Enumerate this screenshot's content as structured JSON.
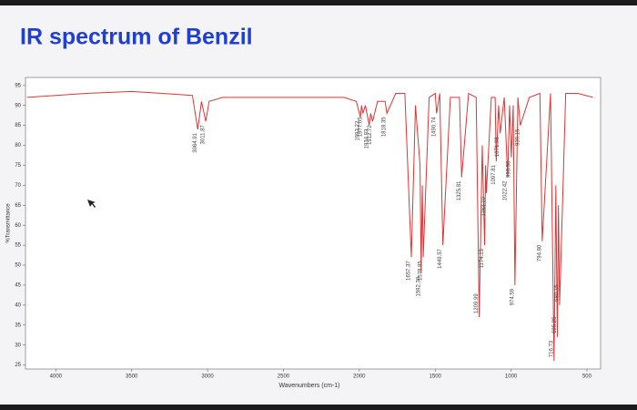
{
  "chart_data": {
    "type": "line",
    "title": "IR spectrum of Benzil",
    "xlabel": "Wavenumbers (cm-1)",
    "ylabel": "%Transmittance",
    "color": "#e03535",
    "x": [
      4190,
      3800,
      3500,
      3300,
      3100,
      3064.91,
      3040,
      3011.87,
      2990,
      2900,
      2500,
      2100,
      2020,
      1993.22,
      1985,
      1977.05,
      1960,
      1934.93,
      1925,
      1912.72,
      1880,
      1830,
      1818.35,
      1760,
      1700,
      1657.37,
      1630,
      1600,
      1592.38,
      1585,
      1578.85,
      1540,
      1500,
      1490.74,
      1470,
      1449.57,
      1400,
      1340,
      1325.81,
      1280,
      1230,
      1209.99,
      1190,
      1174.13,
      1168,
      1163.1,
      1130,
      1105,
      1097.81,
      1082,
      1071.98,
      1045,
      1022.42,
      1010,
      998.5,
      986,
      974.59,
      955,
      939.15,
      880,
      810,
      794.8,
      740,
      716.73,
      705,
      695.25,
      688,
      680.15,
      640,
      560,
      460
    ],
    "values": [
      92,
      93,
      93.5,
      93,
      92.5,
      84,
      91,
      86,
      91,
      92,
      92,
      92,
      91,
      87,
      90,
      88,
      90,
      85,
      88,
      86,
      91,
      91,
      88,
      93,
      93,
      52,
      90,
      75,
      48,
      70,
      52,
      92,
      93,
      88,
      93,
      55,
      92,
      92,
      72,
      93,
      92,
      37,
      80,
      55,
      75,
      68,
      92,
      92,
      76,
      90,
      83,
      92,
      72,
      90,
      77,
      90,
      45,
      92,
      85,
      92,
      93,
      56,
      93,
      26,
      70,
      32,
      65,
      40,
      93,
      93,
      92
    ],
    "annotations": [
      {
        "x": 3064.91,
        "y": 84,
        "label": "3064.91"
      },
      {
        "x": 3011.87,
        "y": 86,
        "label": "3011.87"
      },
      {
        "x": 1993.22,
        "y": 87,
        "label": "1993.22"
      },
      {
        "x": 1977.05,
        "y": 88,
        "label": "1977.05"
      },
      {
        "x": 1934.93,
        "y": 85,
        "label": "1934.93"
      },
      {
        "x": 1912.72,
        "y": 86,
        "label": "1912.72"
      },
      {
        "x": 1818.35,
        "y": 88,
        "label": "1818.35"
      },
      {
        "x": 1657.37,
        "y": 52,
        "label": "1657.37"
      },
      {
        "x": 1592.38,
        "y": 48,
        "label": "1592.38"
      },
      {
        "x": 1578.85,
        "y": 52,
        "label": "1578.85"
      },
      {
        "x": 1490.74,
        "y": 88,
        "label": "1490.74"
      },
      {
        "x": 1449.57,
        "y": 55,
        "label": "1449.57"
      },
      {
        "x": 1325.81,
        "y": 72,
        "label": "1325.81"
      },
      {
        "x": 1209.99,
        "y": 37,
        "label": "1209.99"
      },
      {
        "x": 1174.13,
        "y": 55,
        "label": "1174.13"
      },
      {
        "x": 1163.1,
        "y": 68,
        "label": "1163.10"
      },
      {
        "x": 1097.81,
        "y": 76,
        "label": "1097.81"
      },
      {
        "x": 1071.98,
        "y": 83,
        "label": "1071.98"
      },
      {
        "x": 1022.42,
        "y": 72,
        "label": "1022.42"
      },
      {
        "x": 998.5,
        "y": 77,
        "label": "998.50"
      },
      {
        "x": 974.59,
        "y": 45,
        "label": "974.59"
      },
      {
        "x": 939.15,
        "y": 85,
        "label": "939.15"
      },
      {
        "x": 794.8,
        "y": 56,
        "label": "794.80"
      },
      {
        "x": 716.73,
        "y": 26,
        "label": "716.73"
      },
      {
        "x": 695.25,
        "y": 32,
        "label": "695.25"
      },
      {
        "x": 680.15,
        "y": 40,
        "label": "680.15"
      }
    ],
    "xlim": [
      4200,
      410
    ],
    "ylim": [
      24,
      97
    ],
    "xticks": [
      4000,
      3500,
      3000,
      2500,
      2000,
      1500,
      1000,
      500
    ],
    "yticks": [
      25,
      30,
      35,
      40,
      45,
      50,
      55,
      60,
      65,
      70,
      75,
      80,
      85,
      90,
      95
    ]
  }
}
